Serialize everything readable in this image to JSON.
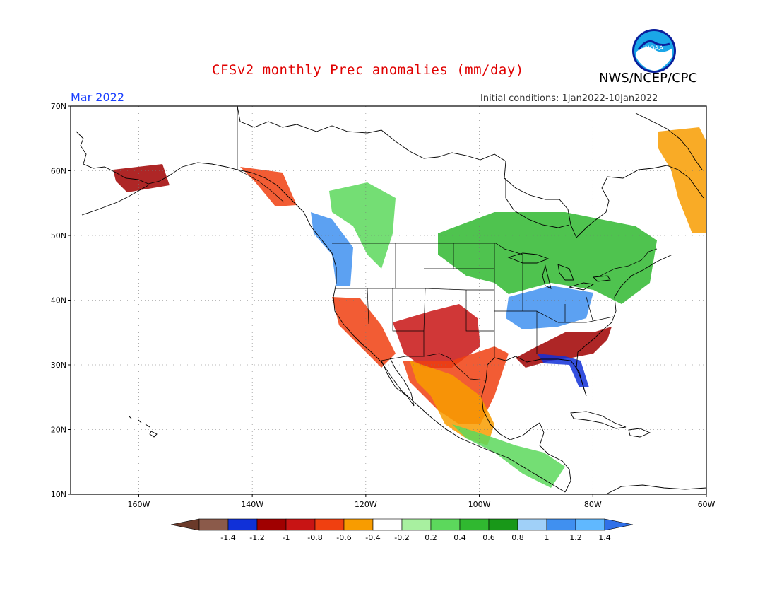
{
  "title": "CFSv2 monthly Prec anomalies (mm/day)",
  "agency": "NWS/NCEP/CPC",
  "month": "Mar 2022",
  "initial_conditions": "Initial conditions: 1Jan2022-10Jan2022",
  "logo": {
    "text": "NOAA",
    "colors": {
      "outer": "#1aa6e8",
      "inner": "#ffffff",
      "ring": "#0a1f9c"
    }
  },
  "map": {
    "lon_range": [
      -172,
      -60
    ],
    "lat_range": [
      10,
      70
    ],
    "lat_labels": [
      "70N",
      "60N",
      "50N",
      "40N",
      "30N",
      "20N",
      "10N"
    ],
    "lon_labels": [
      "160W",
      "140W",
      "120W",
      "100W",
      "80W",
      "60W"
    ],
    "lat_values": [
      70,
      60,
      50,
      40,
      30,
      20,
      10
    ],
    "lon_values": [
      -160,
      -140,
      -120,
      -100,
      -80,
      -60
    ]
  },
  "colorbar": {
    "labels": [
      "-1.4",
      "-1.2",
      "-1",
      "-0.8",
      "-0.6",
      "-0.4",
      "-0.2",
      "0.2",
      "0.4",
      "0.6",
      "0.8",
      "1",
      "1.2",
      "1.4"
    ],
    "colors": [
      "#8b5a4a",
      "#1030d8",
      "#a00000",
      "#c81414",
      "#f04010",
      "#f89c00",
      "#ffffff",
      "#a8f0a0",
      "#5cd85c",
      "#30b830",
      "#189818",
      "#a0d0f8",
      "#4090f0",
      "#60b8ff"
    ],
    "low_arrow_color": "#6b3a2a",
    "high_arrow_color": "#3070e8"
  },
  "anomaly_regions": [
    {
      "region": "Alaska SW coast",
      "value": -0.8,
      "color": "#a00000"
    },
    {
      "region": "Alaska panhandle",
      "value": -0.6,
      "color": "#f04010"
    },
    {
      "region": "Pacific Northwest coast",
      "value": 1.2,
      "color": "#4090f0"
    },
    {
      "region": "Canadian Rockies",
      "value": 0.4,
      "color": "#5cd85c"
    },
    {
      "region": "California",
      "value": -0.6,
      "color": "#f04010"
    },
    {
      "region": "Southwest US",
      "value": -0.8,
      "color": "#c81414"
    },
    {
      "region": "Southern Plains",
      "value": -0.6,
      "color": "#f04010"
    },
    {
      "region": "Ohio Valley",
      "value": 1.2,
      "color": "#4090f0"
    },
    {
      "region": "Great Lakes / Ontario",
      "value": 0.6,
      "color": "#30b830"
    },
    {
      "region": "Southeast US",
      "value": -0.8,
      "color": "#a00000"
    },
    {
      "region": "Florida",
      "value": -1.2,
      "color": "#1030d8"
    },
    {
      "region": "Mexico",
      "value": -0.4,
      "color": "#f89c00"
    },
    {
      "region": "Central America",
      "value": 0.4,
      "color": "#5cd85c"
    },
    {
      "region": "Eastern Canada",
      "value": -0.4,
      "color": "#f89c00"
    }
  ]
}
